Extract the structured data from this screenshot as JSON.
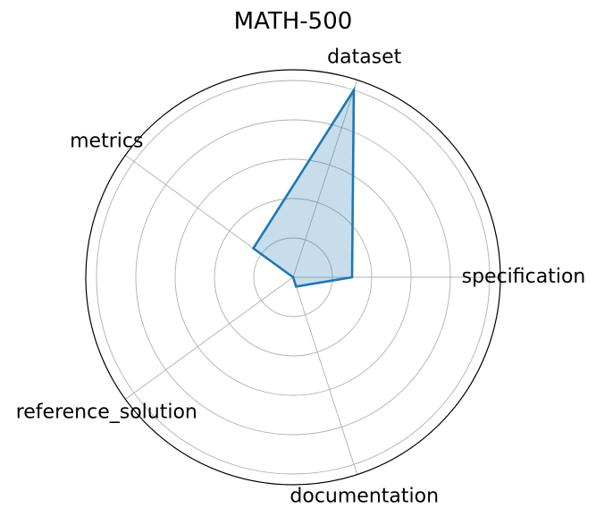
{
  "chart_data": {
    "type": "radar",
    "title": "MATH-500",
    "categories": [
      "specification",
      "dataset",
      "metrics",
      "reference_solution",
      "documentation"
    ],
    "series": [
      {
        "values": [
          0.3,
          1.0,
          0.25,
          0.0,
          0.05
        ]
      }
    ],
    "rlim": [
      0,
      1
    ],
    "rgrid": [
      0.2,
      0.4,
      0.6,
      0.8,
      1.0
    ],
    "grid": true,
    "line_color": "#1f77b4",
    "fill_color": "#1f77b4"
  }
}
